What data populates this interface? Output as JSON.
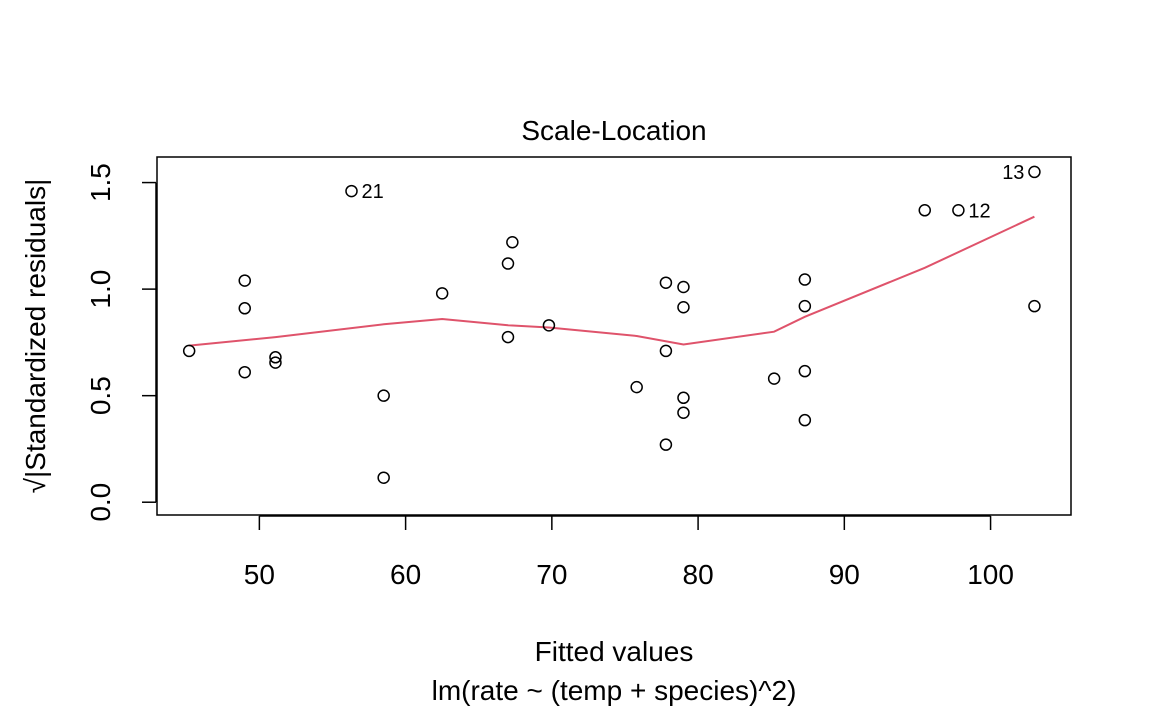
{
  "chart_data": {
    "type": "scatter",
    "title": "Scale-Location",
    "xlabel": "Fitted values",
    "sublabel": "lm(rate ~ (temp + species)^2)",
    "ylabel": "√|Standardized residuals|",
    "xlim": [
      43,
      105.5
    ],
    "ylim": [
      -0.06,
      1.62
    ],
    "x_ticks": [
      50,
      60,
      70,
      80,
      90,
      100
    ],
    "x_tick_labels": [
      "50",
      "60",
      "70",
      "80",
      "90",
      "100"
    ],
    "y_ticks": [
      0.0,
      0.5,
      1.0,
      1.5
    ],
    "y_tick_labels": [
      "0.0",
      "0.5",
      "1.0",
      "1.5"
    ],
    "grid": false,
    "legend": "none",
    "colors": {
      "points": "#000000",
      "smoother": "#DF536B"
    },
    "points": [
      {
        "x": 45.2,
        "y": 0.71
      },
      {
        "x": 49.0,
        "y": 1.04
      },
      {
        "x": 49.0,
        "y": 0.91
      },
      {
        "x": 49.0,
        "y": 0.61
      },
      {
        "x": 51.1,
        "y": 0.68
      },
      {
        "x": 51.1,
        "y": 0.655
      },
      {
        "x": 56.3,
        "y": 1.46,
        "label": "21"
      },
      {
        "x": 58.5,
        "y": 0.5
      },
      {
        "x": 58.5,
        "y": 0.115
      },
      {
        "x": 62.5,
        "y": 0.98
      },
      {
        "x": 67.0,
        "y": 1.12
      },
      {
        "x": 67.3,
        "y": 1.22
      },
      {
        "x": 67.0,
        "y": 0.775
      },
      {
        "x": 69.8,
        "y": 0.83
      },
      {
        "x": 75.8,
        "y": 0.54
      },
      {
        "x": 77.8,
        "y": 1.03
      },
      {
        "x": 77.8,
        "y": 0.71
      },
      {
        "x": 77.8,
        "y": 0.27
      },
      {
        "x": 79.0,
        "y": 1.01
      },
      {
        "x": 79.0,
        "y": 0.915
      },
      {
        "x": 79.0,
        "y": 0.49
      },
      {
        "x": 79.0,
        "y": 0.42
      },
      {
        "x": 85.2,
        "y": 0.58
      },
      {
        "x": 87.3,
        "y": 1.045
      },
      {
        "x": 87.3,
        "y": 0.92
      },
      {
        "x": 87.3,
        "y": 0.615
      },
      {
        "x": 87.3,
        "y": 0.385
      },
      {
        "x": 95.5,
        "y": 1.37
      },
      {
        "x": 97.8,
        "y": 1.37,
        "label": "12"
      },
      {
        "x": 103.0,
        "y": 1.55,
        "label": "13"
      },
      {
        "x": 103.0,
        "y": 0.92
      }
    ],
    "smoother": [
      {
        "x": 45.2,
        "y": 0.735
      },
      {
        "x": 51.1,
        "y": 0.775
      },
      {
        "x": 58.5,
        "y": 0.835
      },
      {
        "x": 62.5,
        "y": 0.86
      },
      {
        "x": 67.0,
        "y": 0.83
      },
      {
        "x": 69.8,
        "y": 0.82
      },
      {
        "x": 75.8,
        "y": 0.78
      },
      {
        "x": 79.0,
        "y": 0.74
      },
      {
        "x": 85.2,
        "y": 0.8
      },
      {
        "x": 87.3,
        "y": 0.87
      },
      {
        "x": 95.5,
        "y": 1.1
      },
      {
        "x": 103.0,
        "y": 1.34
      }
    ]
  }
}
